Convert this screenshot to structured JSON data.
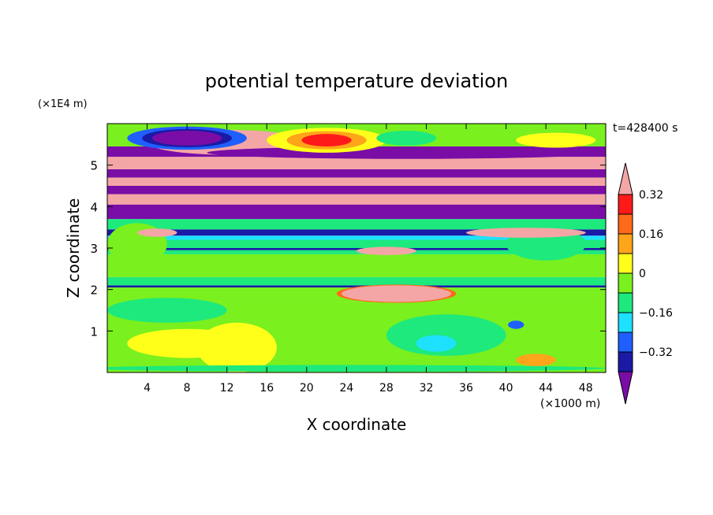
{
  "chart_data": {
    "type": "heatmap",
    "title": "potential temperature deviation",
    "xlabel": "X coordinate",
    "ylabel": "Z coordinate",
    "x_unit": "(×1000 m)",
    "y_unit": "(×1E4 m)",
    "time_label": "t=428400 s",
    "xlim": [
      0,
      50
    ],
    "ylim": [
      0,
      6
    ],
    "x_ticks": [
      "4",
      "8",
      "12",
      "16",
      "20",
      "24",
      "28",
      "32",
      "36",
      "40",
      "44",
      "48"
    ],
    "y_ticks": [
      "1",
      "2",
      "3",
      "4",
      "5"
    ],
    "colorbar": {
      "tick_labels": [
        "0.32",
        "0.16",
        "0",
        "−0.16",
        "−0.32"
      ],
      "levels": [
        -0.4,
        -0.32,
        -0.24,
        -0.16,
        -0.08,
        0,
        0.08,
        0.16,
        0.24,
        0.32,
        0.4
      ],
      "colors": [
        "#7a0da6",
        "#1a1aa6",
        "#1f5fff",
        "#1ee0ff",
        "#1de97d",
        "#7af01e",
        "#ffff1a",
        "#ffa51a",
        "#ff6a1a",
        "#ff1a1a",
        "#f4a6a6"
      ]
    },
    "bands": [
      {
        "z0": 0.0,
        "z1": 1.7,
        "color": "#7af01e"
      },
      {
        "z0": 1.7,
        "z1": 2.05,
        "color": "#7af01e"
      },
      {
        "z0": 2.05,
        "z1": 2.1,
        "color": "#1a1aa6"
      },
      {
        "z0": 2.1,
        "z1": 2.3,
        "color": "#1de97d"
      },
      {
        "z0": 2.3,
        "z1": 2.85,
        "color": "#7af01e"
      },
      {
        "z0": 2.85,
        "z1": 2.95,
        "color": "#1de97d"
      },
      {
        "z0": 2.95,
        "z1": 3.0,
        "color": "#1a1aa6"
      },
      {
        "z0": 3.0,
        "z1": 3.2,
        "color": "#1de97d"
      },
      {
        "z0": 3.2,
        "z1": 3.3,
        "color": "#1ee0ff"
      },
      {
        "z0": 3.3,
        "z1": 3.45,
        "color": "#1a1aa6"
      },
      {
        "z0": 3.45,
        "z1": 3.7,
        "color": "#1de97d"
      },
      {
        "z0": 3.7,
        "z1": 4.05,
        "color": "#7a0da6"
      },
      {
        "z0": 4.05,
        "z1": 4.3,
        "color": "#f4a6a6"
      },
      {
        "z0": 4.3,
        "z1": 4.5,
        "color": "#7a0da6"
      },
      {
        "z0": 4.5,
        "z1": 4.7,
        "color": "#f4a6a6"
      },
      {
        "z0": 4.7,
        "z1": 4.9,
        "color": "#7a0da6"
      },
      {
        "z0": 4.9,
        "z1": 5.2,
        "color": "#f4a6a6"
      },
      {
        "z0": 5.2,
        "z1": 5.45,
        "color": "#7a0da6"
      },
      {
        "z0": 5.45,
        "z1": 6.0,
        "color": "#7af01e"
      }
    ],
    "features": [
      {
        "cx": 3.0,
        "cz": 3.1,
        "rx": 3.0,
        "rz": 0.5,
        "color": "#7af01e"
      },
      {
        "cx": 44.0,
        "cz": 3.1,
        "rx": 4.0,
        "rz": 0.4,
        "color": "#1de97d"
      },
      {
        "cx": 12.0,
        "cz": 5.55,
        "rx": 8.0,
        "rz": 0.3,
        "color": "#f4a6a6"
      },
      {
        "cx": 30.0,
        "cz": 5.3,
        "rx": 20.0,
        "rz": 0.15,
        "color": "#7a0da6"
      },
      {
        "cx": 8.0,
        "cz": 5.65,
        "rx": 6.0,
        "rz": 0.28,
        "color": "#1f5fff"
      },
      {
        "cx": 8.0,
        "cz": 5.65,
        "rx": 4.5,
        "rz": 0.22,
        "color": "#1a1aa6"
      },
      {
        "cx": 8.0,
        "cz": 5.65,
        "rx": 3.5,
        "rz": 0.18,
        "color": "#7a0da6"
      },
      {
        "cx": 22.0,
        "cz": 5.6,
        "rx": 6.0,
        "rz": 0.3,
        "color": "#ffff1a"
      },
      {
        "cx": 22.0,
        "cz": 5.6,
        "rx": 4.0,
        "rz": 0.22,
        "color": "#ffa51a"
      },
      {
        "cx": 22.0,
        "cz": 5.6,
        "rx": 2.5,
        "rz": 0.15,
        "color": "#ff1a1a"
      },
      {
        "cx": 30.0,
        "cz": 5.65,
        "rx": 3.0,
        "rz": 0.18,
        "color": "#1de97d"
      },
      {
        "cx": 45.0,
        "cz": 5.6,
        "rx": 4.0,
        "rz": 0.18,
        "color": "#ffff1a"
      },
      {
        "cx": 5.0,
        "cz": 3.37,
        "rx": 2.0,
        "rz": 0.1,
        "color": "#f4a6a6"
      },
      {
        "cx": 42.0,
        "cz": 3.37,
        "rx": 6.0,
        "rz": 0.12,
        "color": "#f4a6a6"
      },
      {
        "cx": 28.0,
        "cz": 2.93,
        "rx": 3.0,
        "rz": 0.1,
        "color": "#f4a6a6"
      },
      {
        "cx": 29.0,
        "cz": 1.9,
        "rx": 6.0,
        "rz": 0.22,
        "color": "#ff6a1a"
      },
      {
        "cx": 29.0,
        "cz": 1.9,
        "rx": 5.5,
        "rz": 0.2,
        "color": "#f4a6a6"
      },
      {
        "cx": 6.0,
        "cz": 1.5,
        "rx": 6.0,
        "rz": 0.3,
        "color": "#1de97d"
      },
      {
        "cx": 8.0,
        "cz": 0.7,
        "rx": 6.0,
        "rz": 0.35,
        "color": "#ffff1a"
      },
      {
        "cx": 13.0,
        "cz": 0.6,
        "rx": 4.0,
        "rz": 0.6,
        "color": "#ffff1a"
      },
      {
        "cx": 34.0,
        "cz": 0.9,
        "rx": 6.0,
        "rz": 0.5,
        "color": "#1de97d"
      },
      {
        "cx": 33.0,
        "cz": 0.7,
        "rx": 2.0,
        "rz": 0.2,
        "color": "#1ee0ff"
      },
      {
        "cx": 41.0,
        "cz": 1.15,
        "rx": 0.8,
        "rz": 0.1,
        "color": "#1f5fff"
      },
      {
        "cx": 43.0,
        "cz": 0.3,
        "rx": 2.0,
        "rz": 0.15,
        "color": "#ffa51a"
      },
      {
        "cx": 24.0,
        "cz": 0.1,
        "rx": 26.0,
        "rz": 0.08,
        "color": "#1de97d"
      }
    ]
  }
}
